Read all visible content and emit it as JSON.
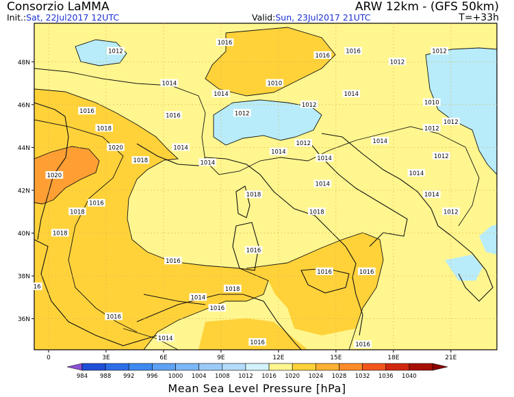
{
  "header": {
    "organization": "Consorzio LaMMA",
    "model": "ARW 12km  -  (GFS 50km)",
    "init_label": "Init.:",
    "init_value": "Sat, 22Jul2017 12UTC",
    "valid_label": "Valid:",
    "valid_value": "Sun, 23Jul2017 21UTC",
    "lead_time": "T=+33h"
  },
  "map": {
    "lat_ticks": [
      "48N",
      "46N",
      "44N",
      "42N",
      "40N",
      "38N",
      "36N"
    ],
    "lon_ticks": [
      "0",
      "3E",
      "6E",
      "9E",
      "12E",
      "15E",
      "18E",
      "21E"
    ],
    "isobar_labels": [
      {
        "text": "1016",
        "lon": 9.2,
        "lat": 48.9
      },
      {
        "text": "1012",
        "lon": 3.5,
        "lat": 48.5
      },
      {
        "text": "1016",
        "lon": 14.3,
        "lat": 48.3
      },
      {
        "text": "1016",
        "lon": 15.9,
        "lat": 48.5
      },
      {
        "text": "1012",
        "lon": 20.4,
        "lat": 48.5
      },
      {
        "text": "1012",
        "lon": 18.2,
        "lat": 48.0
      },
      {
        "text": "1010",
        "lon": 20.0,
        "lat": 46.1
      },
      {
        "text": "1014",
        "lon": 6.3,
        "lat": 47.0
      },
      {
        "text": "1010",
        "lon": 11.8,
        "lat": 47.0
      },
      {
        "text": "1014",
        "lon": 9.0,
        "lat": 46.5
      },
      {
        "text": "1014",
        "lon": 15.8,
        "lat": 46.5
      },
      {
        "text": "1012",
        "lon": 13.6,
        "lat": 46.0
      },
      {
        "text": "1012",
        "lon": 10.1,
        "lat": 45.6
      },
      {
        "text": "1016",
        "lon": 2.0,
        "lat": 45.7
      },
      {
        "text": "1016",
        "lon": 6.5,
        "lat": 45.5
      },
      {
        "text": "1012",
        "lon": 21.0,
        "lat": 45.2
      },
      {
        "text": "1012",
        "lon": 20.0,
        "lat": 44.9
      },
      {
        "text": "1018",
        "lon": 2.9,
        "lat": 44.9
      },
      {
        "text": "1020",
        "lon": 3.5,
        "lat": 44.0
      },
      {
        "text": "1014",
        "lon": 6.9,
        "lat": 44.0
      },
      {
        "text": "1014",
        "lon": 12.0,
        "lat": 43.8
      },
      {
        "text": "1012",
        "lon": 13.3,
        "lat": 44.2
      },
      {
        "text": "1014",
        "lon": 17.3,
        "lat": 44.3
      },
      {
        "text": "1012",
        "lon": 20.5,
        "lat": 43.6
      },
      {
        "text": "1018",
        "lon": 4.8,
        "lat": 43.4
      },
      {
        "text": "1014",
        "lon": 8.3,
        "lat": 43.3
      },
      {
        "text": "1014",
        "lon": 14.4,
        "lat": 43.5
      },
      {
        "text": "1014",
        "lon": 19.2,
        "lat": 42.8
      },
      {
        "text": "1020",
        "lon": 0.3,
        "lat": 42.7
      },
      {
        "text": "1014",
        "lon": 14.3,
        "lat": 42.3
      },
      {
        "text": "1018",
        "lon": 10.7,
        "lat": 41.8
      },
      {
        "text": "1014",
        "lon": 20.0,
        "lat": 41.8
      },
      {
        "text": "1016",
        "lon": 2.5,
        "lat": 41.4
      },
      {
        "text": "1018",
        "lon": 1.5,
        "lat": 41.0
      },
      {
        "text": "1018",
        "lon": 14.0,
        "lat": 41.0
      },
      {
        "text": "1012",
        "lon": 21.0,
        "lat": 41.0
      },
      {
        "text": "1018",
        "lon": 0.6,
        "lat": 40.0
      },
      {
        "text": "1016",
        "lon": 10.7,
        "lat": 39.2
      },
      {
        "text": "1016",
        "lon": 6.5,
        "lat": 38.7
      },
      {
        "text": "1016",
        "lon": 14.4,
        "lat": 38.2
      },
      {
        "text": "1016",
        "lon": 16.6,
        "lat": 38.2
      },
      {
        "text": "16",
        "lon": -0.6,
        "lat": 37.5
      },
      {
        "text": "1018",
        "lon": 9.6,
        "lat": 37.4
      },
      {
        "text": "1014",
        "lon": 7.8,
        "lat": 37.0
      },
      {
        "text": "1016",
        "lon": 8.8,
        "lat": 36.5
      },
      {
        "text": "1016",
        "lon": 3.4,
        "lat": 36.1
      },
      {
        "text": "1014",
        "lon": 6.1,
        "lat": 35.1
      },
      {
        "text": "1016",
        "lon": 10.9,
        "lat": 34.9
      },
      {
        "text": "1016",
        "lon": 16.4,
        "lat": 34.8
      }
    ]
  },
  "colorbar": {
    "title": "Mean Sea Level Pressure [hPa]",
    "levels": [
      "984",
      "988",
      "992",
      "996",
      "1000",
      "1004",
      "1008",
      "1012",
      "1016",
      "1020",
      "1024",
      "1028",
      "1032",
      "1036",
      "1040"
    ],
    "colors": [
      "#1f4fd8",
      "#2d6ee8",
      "#3f8af0",
      "#5ea2f4",
      "#7cb8f7",
      "#9ccaf8",
      "#b5dcfa",
      "#d3f3fb",
      "#fff68f",
      "#ffd23a",
      "#ffb133",
      "#ff8c2a",
      "#f2561d",
      "#d0260f",
      "#a80f05"
    ],
    "under_color": "#8c52d6",
    "over_color": "#8c0000",
    "fill_colors": {
      "lt_1012": "#b8ecfb",
      "p1012_1016": "#fff68f",
      "p1016_1020": "#ffd23a",
      "p1020_1024": "#ff9f33",
      "coast": "#111111",
      "border": "#888888",
      "grid": "#d9b84a"
    }
  }
}
